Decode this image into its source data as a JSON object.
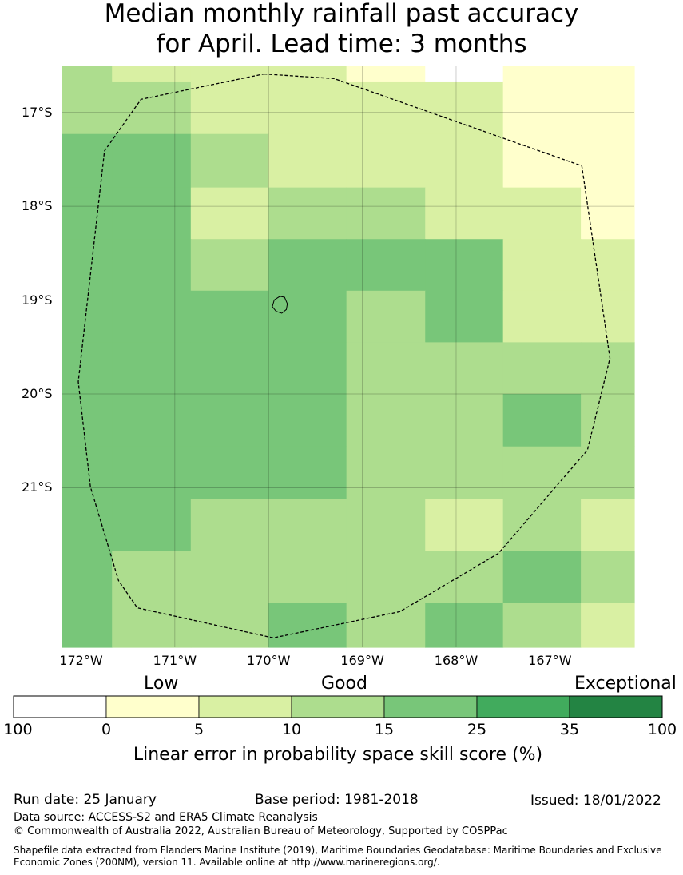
{
  "title_line1": "Median monthly rainfall past accuracy",
  "title_line2": "for April. Lead time: 3 months",
  "map": {
    "lat_labels": [
      "17°S",
      "18°S",
      "19°S",
      "20°S",
      "21°S"
    ],
    "lon_labels": [
      "172°W",
      "171°W",
      "170°W",
      "169°W",
      "168°W",
      "167°W"
    ],
    "lat_values": [
      -17,
      -18,
      -19,
      -20,
      -21
    ],
    "lon_values": [
      -172,
      -171,
      -170,
      -169,
      -168,
      -167
    ],
    "extent": {
      "lon_min": -172.2,
      "lon_max": -166.1,
      "lat_max": -16.5,
      "lat_min": -22.7
    },
    "grid_lon_edges": [
      -172.2,
      -171.67,
      -170.83,
      -170.0,
      -169.17,
      -168.33,
      -167.5,
      -166.67,
      -166.1
    ],
    "grid_lat_edges": [
      -16.5,
      -16.67,
      -17.23,
      -17.8,
      -18.35,
      -18.9,
      -19.45,
      -20.0,
      -20.56,
      -21.12,
      -21.67,
      -22.23,
      -22.7
    ],
    "grid_values": [
      [
        3,
        2,
        2,
        2,
        1,
        0,
        1,
        1
      ],
      [
        3,
        3,
        2,
        2,
        2,
        2,
        1,
        1
      ],
      [
        4,
        4,
        3,
        2,
        2,
        2,
        1,
        1
      ],
      [
        4,
        4,
        2,
        3,
        3,
        2,
        2,
        1
      ],
      [
        4,
        4,
        3,
        4,
        4,
        4,
        2,
        2
      ],
      [
        4,
        4,
        4,
        4,
        3,
        4,
        2,
        2
      ],
      [
        4,
        4,
        4,
        4,
        3,
        3,
        3,
        3
      ],
      [
        4,
        4,
        4,
        4,
        3,
        3,
        4,
        3
      ],
      [
        4,
        4,
        4,
        4,
        3,
        3,
        3,
        3
      ],
      [
        4,
        4,
        3,
        3,
        3,
        2,
        3,
        2
      ],
      [
        4,
        3,
        3,
        3,
        3,
        3,
        4,
        3
      ],
      [
        4,
        3,
        3,
        4,
        3,
        4,
        3,
        2
      ]
    ],
    "eez_boundary": [
      [
        -170.05,
        -16.59
      ],
      [
        -169.3,
        -16.64
      ],
      [
        -166.66,
        -17.57
      ],
      [
        -166.36,
        -19.62
      ],
      [
        -166.6,
        -20.6
      ],
      [
        -167.55,
        -21.7
      ],
      [
        -168.6,
        -22.32
      ],
      [
        -169.95,
        -22.6
      ],
      [
        -171.4,
        -22.28
      ],
      [
        -171.6,
        -21.99
      ],
      [
        -171.9,
        -20.99
      ],
      [
        -172.03,
        -19.87
      ],
      [
        -171.75,
        -17.41
      ],
      [
        -171.36,
        -16.86
      ],
      [
        -170.05,
        -16.59
      ]
    ],
    "island": [
      [
        -169.88,
        -18.96
      ],
      [
        -169.83,
        -18.97
      ],
      [
        -169.8,
        -19.04
      ],
      [
        -169.81,
        -19.1
      ],
      [
        -169.86,
        -19.14
      ],
      [
        -169.92,
        -19.12
      ],
      [
        -169.96,
        -19.07
      ],
      [
        -169.94,
        -19.0
      ],
      [
        -169.88,
        -18.96
      ]
    ]
  },
  "legend": {
    "categories": [
      "Low",
      "Good",
      "Exceptional"
    ],
    "tick_labels": [
      "100",
      "0",
      "5",
      "10",
      "15",
      "25",
      "35",
      "100"
    ],
    "colors": [
      "#ffffff",
      "#ffffcc",
      "#d9f0a3",
      "#addd8e",
      "#78c679",
      "#41ab5d",
      "#238443"
    ],
    "title": "Linear error in probability space skill score (%)"
  },
  "footer": {
    "run_date": "Run date: 25 January",
    "base_period": "Base period: 1981-2018",
    "issued": "Issued: 18/01/2022",
    "data_source": "Data source: ACCESS-S2 and ERA5 Climate Reanalysis",
    "copyright": "© Commonwealth of Australia 2022, Australian Bureau of Meteorology, Supported by COSPPac",
    "shapefile_line1": "Shapefile data extracted from Flanders Marine Institute (2019), Maritime Boundaries Geodatabase: Maritime Boundaries and Exclusive",
    "shapefile_line2": "Economic Zones (200NM), version 11. Available online at http://www.marineregions.org/."
  }
}
